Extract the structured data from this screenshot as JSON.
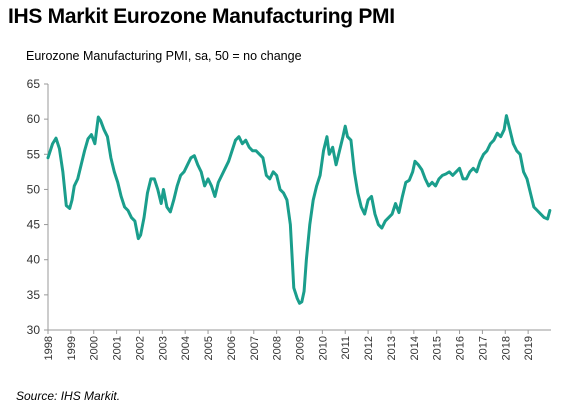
{
  "title": "IHS Markit Eurozone Manufacturing PMI",
  "subtitle": "Eurozone Manufacturing PMI, sa, 50 = no change",
  "source": "Source: IHS Markit.",
  "colors": {
    "line": "#1a9e8c",
    "axis": "#999999",
    "text": "#333333"
  },
  "chart_data": {
    "type": "line",
    "title": "IHS Markit Eurozone Manufacturing PMI",
    "ylabel": "Eurozone Manufacturing PMI, sa, 50 = no change",
    "xlabel": "",
    "ylim": [
      30,
      65
    ],
    "xlim": [
      1998.0,
      2020.0
    ],
    "yticks": [
      30,
      35,
      40,
      45,
      50,
      55,
      60,
      65
    ],
    "xtick_labels": [
      "1998",
      "1999",
      "2000",
      "2001",
      "2002",
      "2003",
      "2004",
      "2005",
      "2006",
      "2007",
      "2008",
      "2009",
      "2010",
      "2011",
      "2012",
      "2013",
      "2014",
      "2015",
      "2016",
      "2017",
      "2018",
      "2019"
    ],
    "grid": false,
    "legend": "none",
    "series": [
      {
        "x": [
          1998.0,
          1998.2,
          1998.35,
          1998.5,
          1998.65,
          1998.8,
          1998.95,
          1999.05,
          1999.15,
          1999.3,
          1999.45,
          1999.6,
          1999.75,
          1999.9,
          2000.05,
          2000.2,
          2000.3,
          2000.45,
          2000.6,
          2000.75,
          2000.9,
          2001.05,
          2001.2,
          2001.35,
          2001.5,
          2001.65,
          2001.8,
          2001.95,
          2002.05,
          2002.2,
          2002.35,
          2002.5,
          2002.65,
          2002.8,
          2002.95,
          2003.05,
          2003.2,
          2003.35,
          2003.5,
          2003.65,
          2003.8,
          2003.95,
          2004.1,
          2004.25,
          2004.4,
          2004.55,
          2004.7,
          2004.85,
          2005.0,
          2005.15,
          2005.3,
          2005.45,
          2005.6,
          2005.75,
          2005.9,
          2006.05,
          2006.2,
          2006.35,
          2006.5,
          2006.65,
          2006.8,
          2006.95,
          2007.1,
          2007.25,
          2007.4,
          2007.55,
          2007.7,
          2007.85,
          2008.0,
          2008.15,
          2008.3,
          2008.45,
          2008.6,
          2008.75,
          2008.9,
          2009.0,
          2009.1,
          2009.2,
          2009.3,
          2009.45,
          2009.6,
          2009.75,
          2009.9,
          2010.05,
          2010.2,
          2010.3,
          2010.45,
          2010.6,
          2010.75,
          2010.9,
          2011.0,
          2011.1,
          2011.25,
          2011.4,
          2011.55,
          2011.7,
          2011.85,
          2012.0,
          2012.15,
          2012.3,
          2012.45,
          2012.6,
          2012.75,
          2012.9,
          2013.05,
          2013.2,
          2013.35,
          2013.5,
          2013.65,
          2013.8,
          2013.95,
          2014.05,
          2014.2,
          2014.35,
          2014.5,
          2014.65,
          2014.8,
          2014.95,
          2015.1,
          2015.25,
          2015.4,
          2015.55,
          2015.7,
          2015.85,
          2016.0,
          2016.15,
          2016.3,
          2016.45,
          2016.6,
          2016.75,
          2016.9,
          2017.05,
          2017.2,
          2017.35,
          2017.5,
          2017.65,
          2017.8,
          2017.95,
          2018.05,
          2018.2,
          2018.35,
          2018.5,
          2018.65,
          2018.8,
          2018.95,
          2019.1,
          2019.25,
          2019.4,
          2019.55,
          2019.7,
          2019.85,
          2019.95
        ],
        "y": [
          54.5,
          56.5,
          57.3,
          55.8,
          52.5,
          47.7,
          47.3,
          48.5,
          50.5,
          51.5,
          53.5,
          55.5,
          57.2,
          57.8,
          56.5,
          60.3,
          59.8,
          58.5,
          57.5,
          54.5,
          52.5,
          51.0,
          49.0,
          47.5,
          47.0,
          46.0,
          45.5,
          43.0,
          43.5,
          46.0,
          49.5,
          51.5,
          51.5,
          50.0,
          48.0,
          50.0,
          47.5,
          46.8,
          48.5,
          50.5,
          52.0,
          52.5,
          53.5,
          54.5,
          54.8,
          53.5,
          52.5,
          50.5,
          51.5,
          50.5,
          49.0,
          51.0,
          52.0,
          53.0,
          54.0,
          55.5,
          57.0,
          57.5,
          56.5,
          57.0,
          56.0,
          55.5,
          55.5,
          55.0,
          54.5,
          52.0,
          51.5,
          52.5,
          52.0,
          50.0,
          49.5,
          48.5,
          45.0,
          36.0,
          34.5,
          33.8,
          34.0,
          35.5,
          40.0,
          45.0,
          48.5,
          50.5,
          52.0,
          55.5,
          57.5,
          55.0,
          56.0,
          53.5,
          55.5,
          57.5,
          59.0,
          57.5,
          57.0,
          52.5,
          49.5,
          47.5,
          46.5,
          48.5,
          49.0,
          46.5,
          45.0,
          44.5,
          45.5,
          46.0,
          46.5,
          48.0,
          46.7,
          49.0,
          51.0,
          51.3,
          52.5,
          54.0,
          53.5,
          52.8,
          51.5,
          50.5,
          51.0,
          50.5,
          51.5,
          52.0,
          52.2,
          52.5,
          52.0,
          52.5,
          53.0,
          51.5,
          51.5,
          52.5,
          53.0,
          52.5,
          54.0,
          55.0,
          55.5,
          56.5,
          57.0,
          58.0,
          57.5,
          58.5,
          60.5,
          58.5,
          56.5,
          55.5,
          55.0,
          52.5,
          51.5,
          49.5,
          47.5,
          47.0,
          46.5,
          46.0,
          45.8,
          47.0
        ],
        "color": "#1a9e8c"
      }
    ]
  }
}
